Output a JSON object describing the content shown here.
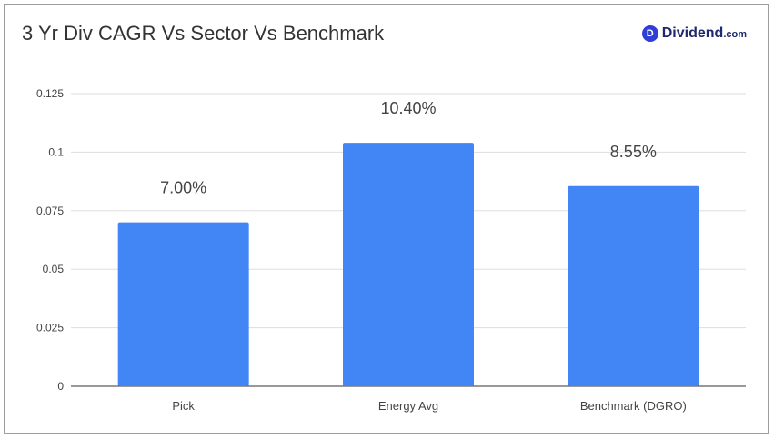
{
  "chart_data": {
    "type": "bar",
    "title": "3 Yr Div CAGR Vs Sector Vs Benchmark",
    "categories": [
      "Pick",
      "Energy Avg",
      "Benchmark (DGRO)"
    ],
    "values": [
      0.07,
      0.104,
      0.0855
    ],
    "data_labels": [
      "7.00%",
      "10.40%",
      "8.55%"
    ],
    "yticks": [
      "0",
      "0.025",
      "0.05",
      "0.075",
      "0.1",
      "0.125"
    ],
    "ylim": [
      0,
      0.125
    ],
    "xlabel": "",
    "ylabel": "",
    "grid": true,
    "legend": "none",
    "bar_color": "#4285f4"
  },
  "logo": {
    "mark": "D",
    "name": "Dividend",
    "suffix": ".com"
  }
}
